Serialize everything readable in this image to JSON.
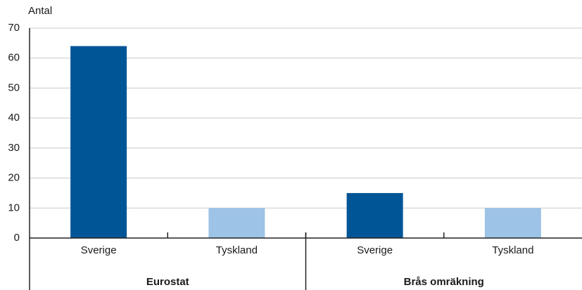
{
  "chart_data": {
    "type": "bar",
    "y_label": "Antal",
    "categories": [
      "Sverige",
      "Tyskland",
      "Sverige",
      "Tyskland"
    ],
    "values": [
      64,
      10,
      15,
      10
    ],
    "colors": [
      "#005596",
      "#9dc3e6",
      "#005596",
      "#9dc3e6"
    ],
    "groups": [
      "Eurostat",
      "Brås omräkning"
    ],
    "ylim": [
      0,
      70
    ],
    "yticks": [
      0,
      10,
      20,
      30,
      40,
      50,
      60,
      70
    ],
    "grid": true
  }
}
